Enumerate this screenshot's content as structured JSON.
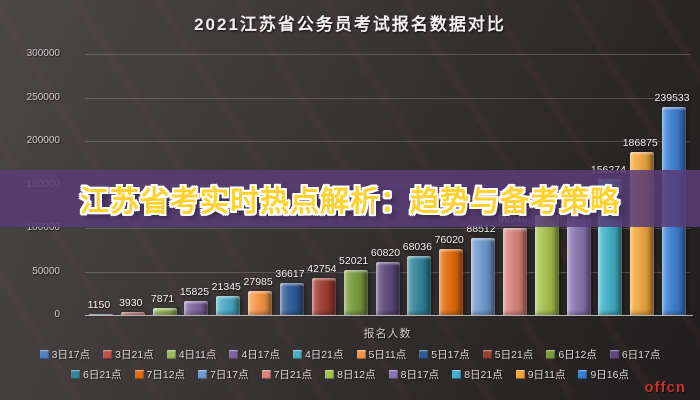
{
  "header": {
    "title": "2021江苏省公务员考试报名数据对比"
  },
  "overlay_banner": {
    "text": "江苏省考实时热点解析：趋势与备考策略",
    "text_color": "#ffd233",
    "band_color": "#583d78"
  },
  "watermark": {
    "brand": "offcn",
    "color": "#c9302c"
  },
  "chart_data": {
    "type": "bar",
    "title": "2021江苏省公务员考试报名数据对比",
    "xlabel": "报名人数",
    "ylabel": "",
    "ylim": [
      0,
      300000
    ],
    "yticks": [
      0,
      50000,
      100000,
      150000,
      200000,
      250000,
      300000
    ],
    "grid": true,
    "legend_position": "bottom",
    "legend_rows": [
      10,
      9
    ],
    "categories": [
      "3日17点",
      "3日21点",
      "4日11点",
      "4日17点",
      "4日21点",
      "5日11点",
      "5日17点",
      "5日21点",
      "6日12点",
      "6日17点",
      "6日21点",
      "7日12点",
      "7日17点",
      "7日21点",
      "8日12点",
      "8日17点",
      "8日21点",
      "9日11点",
      "9日16点"
    ],
    "series": [
      {
        "name": "报名人数",
        "values": [
          1150,
          3930,
          7871,
          15825,
          21345,
          27985,
          36617,
          42754,
          52021,
          60820,
          68036,
          76020,
          88512,
          99946,
          115000,
          132765,
          156274,
          186875,
          239533
        ]
      }
    ],
    "bar_colors": [
      "#4f81bd",
      "#c0504d",
      "#9bbb59",
      "#8064a2",
      "#4bacc6",
      "#f79646",
      "#2c5b96",
      "#9e3b33",
      "#7a9a3c",
      "#5f497a",
      "#31859c",
      "#e36c0a",
      "#6f9bd1",
      "#d9837d",
      "#a5c24e",
      "#8975b2",
      "#41b0c8",
      "#f0a63e",
      "#3b7dd1"
    ]
  }
}
